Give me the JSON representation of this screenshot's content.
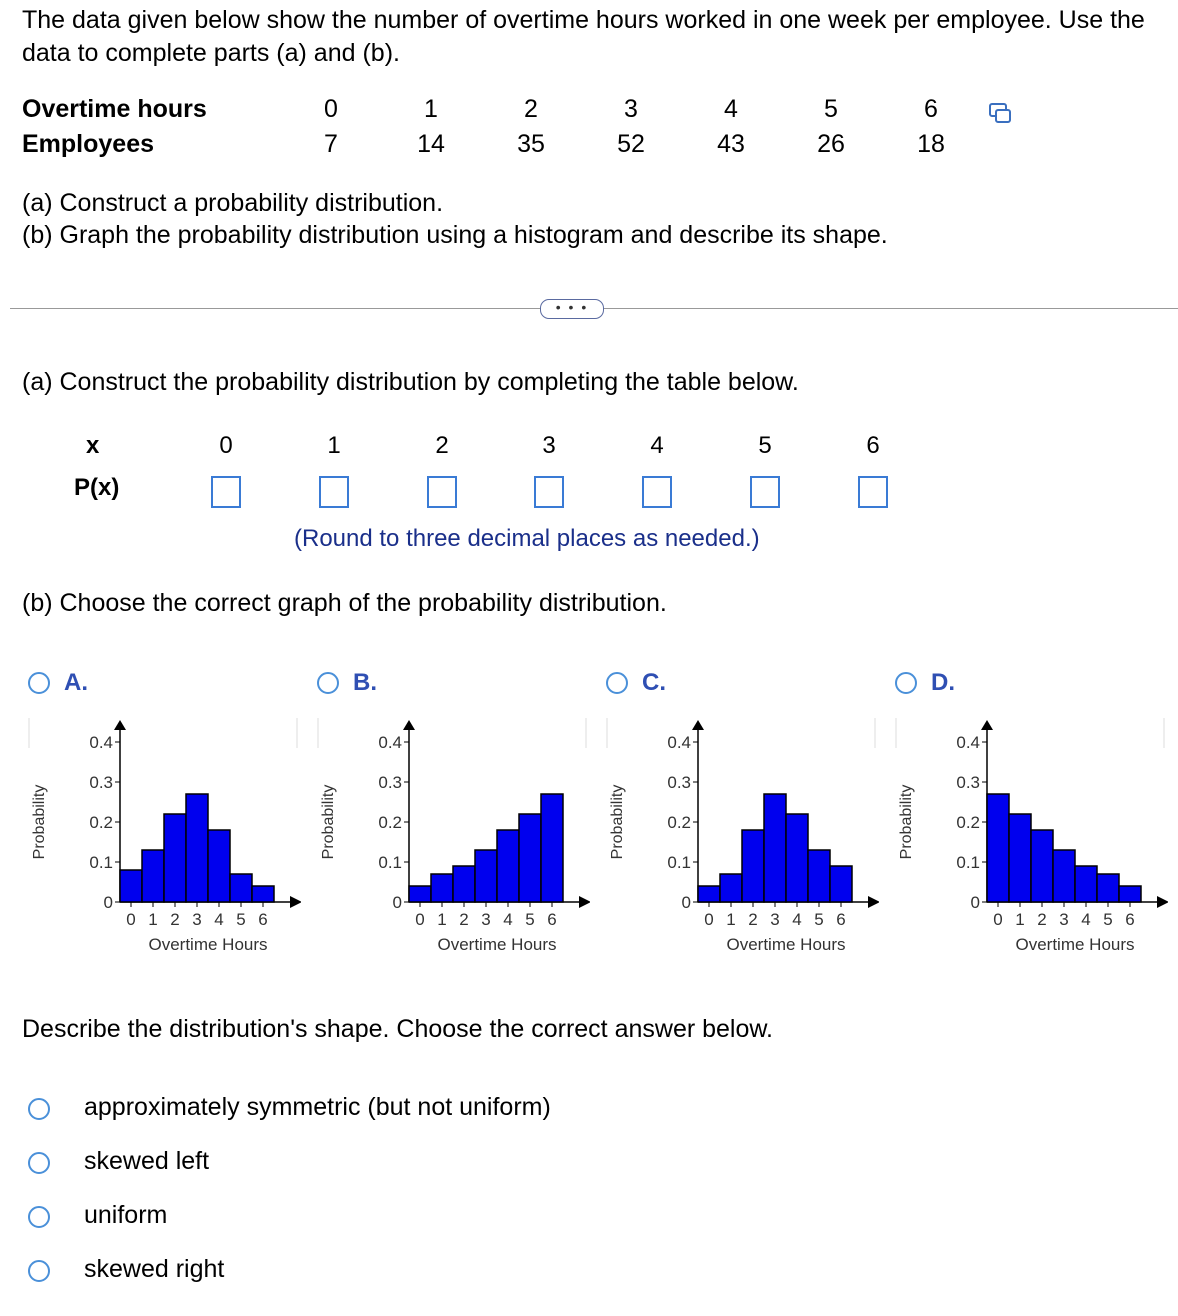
{
  "prompt": "The data given below show the number of overtime hours worked in one week per employee. Use the data to complete parts (a) and (b).",
  "data_table": {
    "row1_label": "Overtime hours",
    "row2_label": "Employees",
    "hours": [
      "0",
      "1",
      "2",
      "3",
      "4",
      "5",
      "6"
    ],
    "employees": [
      "7",
      "14",
      "35",
      "52",
      "43",
      "26",
      "18"
    ]
  },
  "parts": {
    "a": "(a) Construct a probability distribution.",
    "b": "(b) Graph the probability distribution using a histogram and describe its shape."
  },
  "more_button": "• • •",
  "section_a": {
    "heading": "(a) Construct the probability distribution by completing the table below.",
    "x_label": "x",
    "px_label": "P(x)",
    "x_values": [
      "0",
      "1",
      "2",
      "3",
      "4",
      "5",
      "6"
    ],
    "round_note": "(Round to three decimal places as needed.)"
  },
  "section_b": {
    "heading": "(b) Choose the correct graph of the probability distribution."
  },
  "graph_options": [
    {
      "letter": "A.",
      "values": [
        0.08,
        0.13,
        0.22,
        0.27,
        0.18,
        0.07,
        0.04
      ]
    },
    {
      "letter": "B.",
      "values": [
        0.04,
        0.07,
        0.09,
        0.13,
        0.18,
        0.22,
        0.27
      ]
    },
    {
      "letter": "C.",
      "values": [
        0.04,
        0.07,
        0.18,
        0.27,
        0.22,
        0.13,
        0.09
      ]
    },
    {
      "letter": "D.",
      "values": [
        0.27,
        0.22,
        0.18,
        0.13,
        0.09,
        0.07,
        0.04
      ]
    }
  ],
  "chart_data": {
    "type": "bar",
    "ylabel": "Probability",
    "xlabel": "Overtime Hours",
    "y_ticks": [
      "0",
      "0.1",
      "0.2",
      "0.3",
      "0.4"
    ],
    "x_ticks": [
      "0",
      "1",
      "2",
      "3",
      "4",
      "5",
      "6"
    ],
    "ylim": [
      0,
      0.4
    ],
    "bar_color": "#0000ee"
  },
  "shape_question": "Describe the distribution's shape. Choose the correct answer below.",
  "shape_options": [
    "approximately symmetric (but not uniform)",
    "skewed left",
    "uniform",
    "skewed right"
  ],
  "colors": {
    "radio": "#4a90d9",
    "option_letter": "#2f4fb3",
    "note": "#1a2f8a",
    "input_border": "#3a7bd5"
  }
}
